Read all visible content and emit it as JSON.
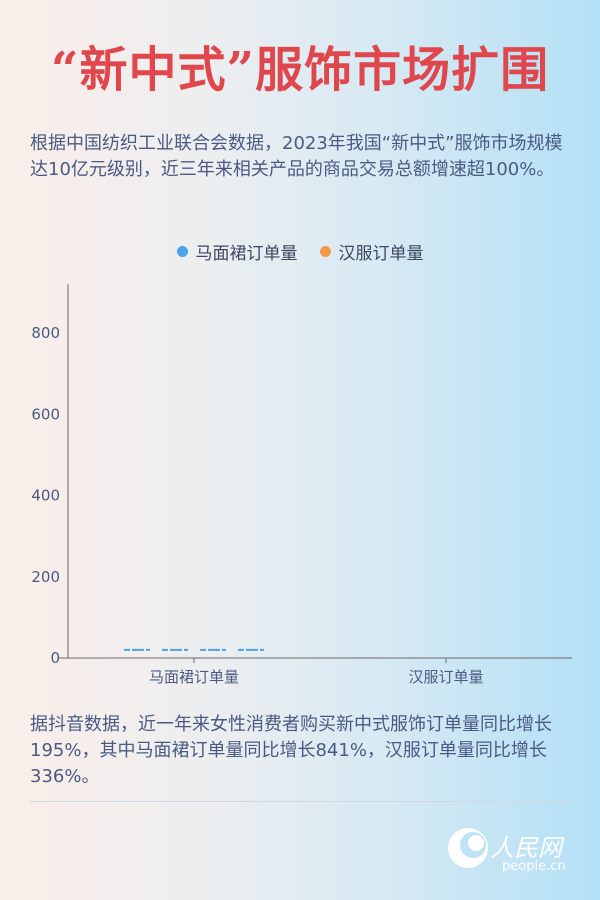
{
  "title": "“新中式”服饰市场扩围",
  "intro": "根据中国纺织工业联合会数据，2023年我国“新中式”服饰市场规模达10亿元级别，近三年来相关产品的商品交易总额增速超100%。",
  "footer_text": "据抖音数据，近一年来女性消费者购买新中式服饰订单量同比增长195%，其中马面裙订单量同比增长841%，汉服订单量同比增长336%。",
  "logo": {
    "name": "人民网",
    "domain": "people.cn"
  },
  "colors": {
    "title": "#e0474c",
    "series1": "#4da3ea",
    "series2": "#f5984a"
  },
  "chart_data": {
    "type": "bar",
    "categories": [
      "马面裙订单量",
      "汉服订单量"
    ],
    "legend": [
      "马面裙订单量",
      "汉服订单量"
    ],
    "legend_position": "top",
    "ylim": [
      0,
      920
    ],
    "yticks": [
      0,
      200,
      400,
      600,
      800
    ],
    "ytick_labels": [
      "0",
      "200",
      "400",
      "600",
      "800"
    ],
    "grid": false,
    "marks": [
      {
        "category": "马面裙订单量",
        "values": [
          20,
          20,
          20,
          20
        ],
        "color": "#4da3ea"
      }
    ]
  }
}
